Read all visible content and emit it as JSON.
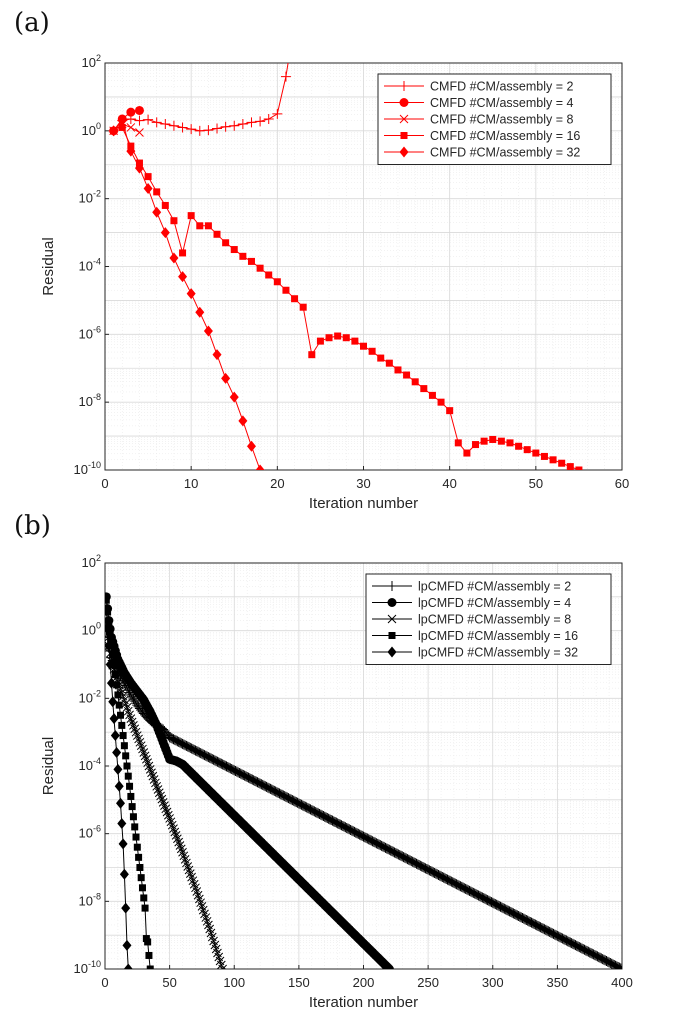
{
  "panels": {
    "a": {
      "label": "(a)"
    },
    "b": {
      "label": "(b)"
    }
  },
  "chart_data": [
    {
      "type": "line",
      "panel": "(a)",
      "xlabel": "Iteration number",
      "ylabel": "Residual",
      "xlim": [
        0,
        60
      ],
      "xticks": [
        0,
        10,
        20,
        30,
        40,
        50,
        60
      ],
      "ylim_log10": [
        -10,
        2
      ],
      "yscale": "log",
      "yticks_exp": [
        -10,
        -8,
        -6,
        -4,
        -2,
        0,
        2
      ],
      "grid": true,
      "legend_position": "top-right",
      "color": "#ff0000",
      "series": [
        {
          "name": "CMFD #CM/assembly = 2",
          "marker": "plus",
          "x": [
            1,
            2,
            3,
            4,
            5,
            6,
            7,
            8,
            9,
            10,
            11,
            12,
            13,
            14,
            15,
            16,
            17,
            18,
            19,
            20,
            21,
            22
          ],
          "y_log10": [
            0,
            0.3,
            0.35,
            0.3,
            0.33,
            0.25,
            0.2,
            0.15,
            0.1,
            0.05,
            0,
            0.02,
            0.07,
            0.12,
            0.15,
            0.2,
            0.25,
            0.28,
            0.35,
            0.5,
            1.6,
            3.2
          ]
        },
        {
          "name": "CMFD #CM/assembly = 4",
          "marker": "circle",
          "x": [
            1,
            2,
            3,
            4
          ],
          "y_log10": [
            0,
            0.35,
            0.55,
            0.6
          ]
        },
        {
          "name": "CMFD #CM/assembly = 8",
          "marker": "x",
          "x": [
            1,
            2,
            3,
            4
          ],
          "y_log10": [
            0,
            0.2,
            0.1,
            -0.05
          ]
        },
        {
          "name": "CMFD #CM/assembly = 16",
          "marker": "square",
          "x": [
            1,
            2,
            3,
            4,
            5,
            6,
            7,
            8,
            9,
            10,
            11,
            12,
            13,
            14,
            15,
            16,
            17,
            18,
            19,
            20,
            21,
            22,
            23,
            24,
            25,
            26,
            27,
            28,
            29,
            30,
            31,
            32,
            33,
            34,
            35,
            36,
            37,
            38,
            39,
            40,
            41,
            42,
            43,
            44,
            45,
            46,
            47,
            48,
            49,
            50,
            51,
            52,
            53,
            54,
            55
          ],
          "y_log10": [
            0,
            0.1,
            -0.45,
            -0.95,
            -1.35,
            -1.8,
            -2.2,
            -2.65,
            -3.6,
            -2.5,
            -2.8,
            -2.8,
            -3.05,
            -3.3,
            -3.5,
            -3.7,
            -3.85,
            -4.05,
            -4.25,
            -4.45,
            -4.7,
            -4.95,
            -5.2,
            -6.6,
            -6.2,
            -6.1,
            -6.05,
            -6.1,
            -6.2,
            -6.35,
            -6.5,
            -6.7,
            -6.85,
            -7.05,
            -7.2,
            -7.4,
            -7.6,
            -7.8,
            -8,
            -8.25,
            -9.2,
            -9.5,
            -9.25,
            -9.15,
            -9.1,
            -9.15,
            -9.2,
            -9.3,
            -9.4,
            -9.5,
            -9.6,
            -9.7,
            -9.8,
            -9.9,
            -10
          ]
        },
        {
          "name": "CMFD #CM/assembly = 32",
          "marker": "diamond",
          "x": [
            1,
            2,
            3,
            4,
            5,
            6,
            7,
            8,
            9,
            10,
            11,
            12,
            13,
            14,
            15,
            16,
            17,
            18
          ],
          "y_log10": [
            0,
            0.3,
            -0.6,
            -1.1,
            -1.7,
            -2.4,
            -3.0,
            -3.75,
            -4.3,
            -4.8,
            -5.35,
            -5.9,
            -6.6,
            -7.3,
            -7.85,
            -8.55,
            -9.3,
            -10
          ]
        }
      ]
    },
    {
      "type": "line",
      "panel": "(b)",
      "xlabel": "Iteration number",
      "ylabel": "Residual",
      "xlim": [
        0,
        400
      ],
      "xticks": [
        0,
        50,
        100,
        150,
        200,
        250,
        300,
        350,
        400
      ],
      "ylim_log10": [
        -10,
        2
      ],
      "yscale": "log",
      "yticks_exp": [
        -10,
        -8,
        -6,
        -4,
        -2,
        0,
        2
      ],
      "grid": true,
      "legend_position": "top-right",
      "color": "#000000",
      "series": [
        {
          "name": "lpCMFD #CM/assembly = 2",
          "marker": "plus",
          "x": [
            1,
            5,
            10,
            15,
            20,
            25,
            30,
            35,
            40,
            45,
            50,
            400
          ],
          "y_log10": [
            0,
            -0.8,
            -1.2,
            -1.55,
            -1.9,
            -2.2,
            -2.45,
            -2.65,
            -2.8,
            -2.92,
            -3.15,
            -10
          ]
        },
        {
          "name": "lpCMFD #CM/assembly = 4",
          "marker": "circle",
          "x": [
            1,
            3,
            5,
            10,
            15,
            20,
            25,
            30,
            35,
            40,
            45,
            50,
            55,
            60,
            220
          ],
          "y_log10": [
            1,
            0.3,
            -0.2,
            -0.85,
            -1.25,
            -1.55,
            -1.8,
            -2.05,
            -2.4,
            -2.8,
            -3.3,
            -3.8,
            -3.85,
            -3.95,
            -10
          ]
        },
        {
          "name": "lpCMFD #CM/assembly = 8",
          "marker": "x",
          "x": [
            1,
            5,
            10,
            20,
            30,
            40,
            50,
            60,
            70,
            80,
            91
          ],
          "y_log10": [
            0,
            -0.9,
            -1.5,
            -2.6,
            -3.6,
            -4.6,
            -5.55,
            -6.55,
            -7.6,
            -8.7,
            -10
          ]
        },
        {
          "name": "lpCMFD #CM/assembly = 16",
          "marker": "square",
          "x": [
            1,
            2,
            3,
            4,
            5,
            6,
            7,
            8,
            9,
            10,
            11,
            12,
            13,
            14,
            15,
            16,
            17,
            18,
            19,
            20,
            21,
            22,
            23,
            24,
            25,
            26,
            27,
            28,
            29,
            30,
            31,
            32,
            33,
            34,
            35
          ],
          "y_log10": [
            0.9,
            0.55,
            0.2,
            -0.1,
            -0.4,
            -0.7,
            -1.0,
            -1.3,
            -1.6,
            -1.9,
            -2.2,
            -2.5,
            -2.8,
            -3.1,
            -3.4,
            -3.7,
            -4.0,
            -4.3,
            -4.6,
            -4.9,
            -5.2,
            -5.5,
            -5.8,
            -6.1,
            -6.4,
            -6.7,
            -7.0,
            -7.3,
            -7.6,
            -7.9,
            -8.2,
            -9.1,
            -9.2,
            -9.6,
            -10
          ]
        },
        {
          "name": "lpCMFD #CM/assembly = 32",
          "marker": "diamond",
          "x": [
            1,
            2,
            3,
            4,
            5,
            6,
            7,
            8,
            9,
            10,
            11,
            12,
            13,
            14,
            15,
            16,
            17,
            18
          ],
          "y_log10": [
            0.6,
            0.1,
            -0.45,
            -1.0,
            -1.55,
            -2.1,
            -2.6,
            -3.1,
            -3.6,
            -4.1,
            -4.6,
            -5.1,
            -5.7,
            -6.3,
            -7.2,
            -8.2,
            -9.3,
            -10
          ]
        }
      ]
    }
  ]
}
